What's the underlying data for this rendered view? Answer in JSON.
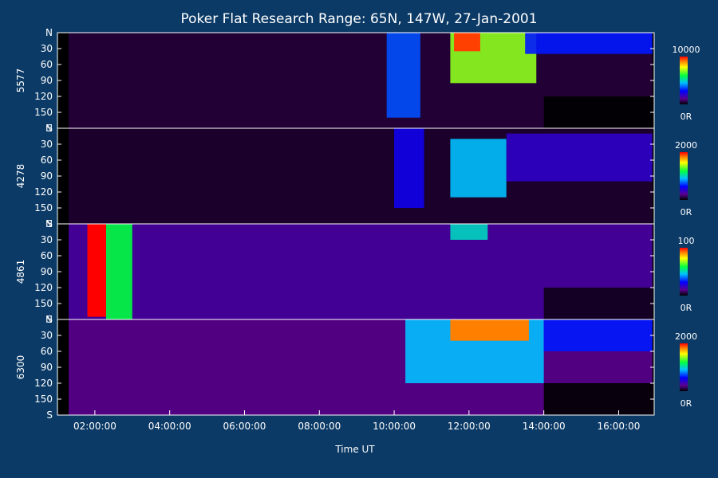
{
  "chart_data": {
    "type": "heatmap",
    "title": "Poker Flat Research Range: 65N, 147W, 27-Jan-2001",
    "xlabel": "Time UT",
    "x_ticks": [
      "02:00:00",
      "04:00:00",
      "06:00:00",
      "08:00:00",
      "10:00:00",
      "12:00:00",
      "14:00:00",
      "16:00:00"
    ],
    "x_tick_hours": [
      2,
      4,
      6,
      8,
      10,
      12,
      14,
      16
    ],
    "xlim_hours": [
      1.0,
      16.95
    ],
    "y_tick_labels": [
      "N",
      "30",
      "60",
      "90",
      "120",
      "150",
      "S"
    ],
    "y_tick_values": [
      0,
      30,
      60,
      90,
      120,
      150,
      180
    ],
    "ylim": [
      0,
      180
    ],
    "panels": [
      {
        "channel": "5577",
        "colorbar_max": "10000",
        "colorbar_min": "0R",
        "features": [
          {
            "t0": 1.3,
            "t1": 16.9,
            "a0": 0,
            "a1": 180,
            "intensity": 0.05
          },
          {
            "t0": 9.8,
            "t1": 10.7,
            "a0": 0,
            "a1": 160,
            "intensity": 0.35
          },
          {
            "t0": 11.5,
            "t1": 13.8,
            "a0": 0,
            "a1": 95,
            "intensity": 0.7
          },
          {
            "t0": 11.6,
            "t1": 12.3,
            "a0": 0,
            "a1": 35,
            "intensity": 0.95
          },
          {
            "t0": 13.5,
            "t1": 16.9,
            "a0": 0,
            "a1": 40,
            "intensity": 0.3
          },
          {
            "t0": 14.0,
            "t1": 16.9,
            "a0": 120,
            "a1": 180,
            "intensity": 0.0
          }
        ]
      },
      {
        "channel": "4278",
        "colorbar_max": "2000",
        "colorbar_min": "0R",
        "features": [
          {
            "t0": 1.3,
            "t1": 16.9,
            "a0": 0,
            "a1": 180,
            "intensity": 0.04
          },
          {
            "t0": 10.0,
            "t1": 10.8,
            "a0": 0,
            "a1": 150,
            "intensity": 0.25
          },
          {
            "t0": 11.5,
            "t1": 13.0,
            "a0": 20,
            "a1": 130,
            "intensity": 0.45
          },
          {
            "t0": 13.0,
            "t1": 16.9,
            "a0": 10,
            "a1": 100,
            "intensity": 0.2
          }
        ]
      },
      {
        "channel": "4861",
        "colorbar_max": "100",
        "colorbar_min": "0R",
        "features": [
          {
            "t0": 1.3,
            "t1": 16.9,
            "a0": 0,
            "a1": 180,
            "intensity": 0.15
          },
          {
            "t0": 1.8,
            "t1": 2.3,
            "a0": 0,
            "a1": 175,
            "intensity": 1.0
          },
          {
            "t0": 2.3,
            "t1": 3.0,
            "a0": 0,
            "a1": 180,
            "intensity": 0.6
          },
          {
            "t0": 11.5,
            "t1": 12.5,
            "a0": 0,
            "a1": 30,
            "intensity": 0.5
          },
          {
            "t0": 14.0,
            "t1": 16.9,
            "a0": 120,
            "a1": 180,
            "intensity": 0.02
          }
        ]
      },
      {
        "channel": "6300",
        "colorbar_max": "2000",
        "colorbar_min": "0R",
        "features": [
          {
            "t0": 1.3,
            "t1": 16.9,
            "a0": 0,
            "a1": 180,
            "intensity": 0.12
          },
          {
            "t0": 10.3,
            "t1": 14.0,
            "a0": 0,
            "a1": 120,
            "intensity": 0.45
          },
          {
            "t0": 11.5,
            "t1": 13.6,
            "a0": 0,
            "a1": 40,
            "intensity": 0.9
          },
          {
            "t0": 14.0,
            "t1": 16.9,
            "a0": 0,
            "a1": 60,
            "intensity": 0.3
          },
          {
            "t0": 14.0,
            "t1": 16.9,
            "a0": 120,
            "a1": 180,
            "intensity": 0.0
          }
        ]
      }
    ]
  }
}
